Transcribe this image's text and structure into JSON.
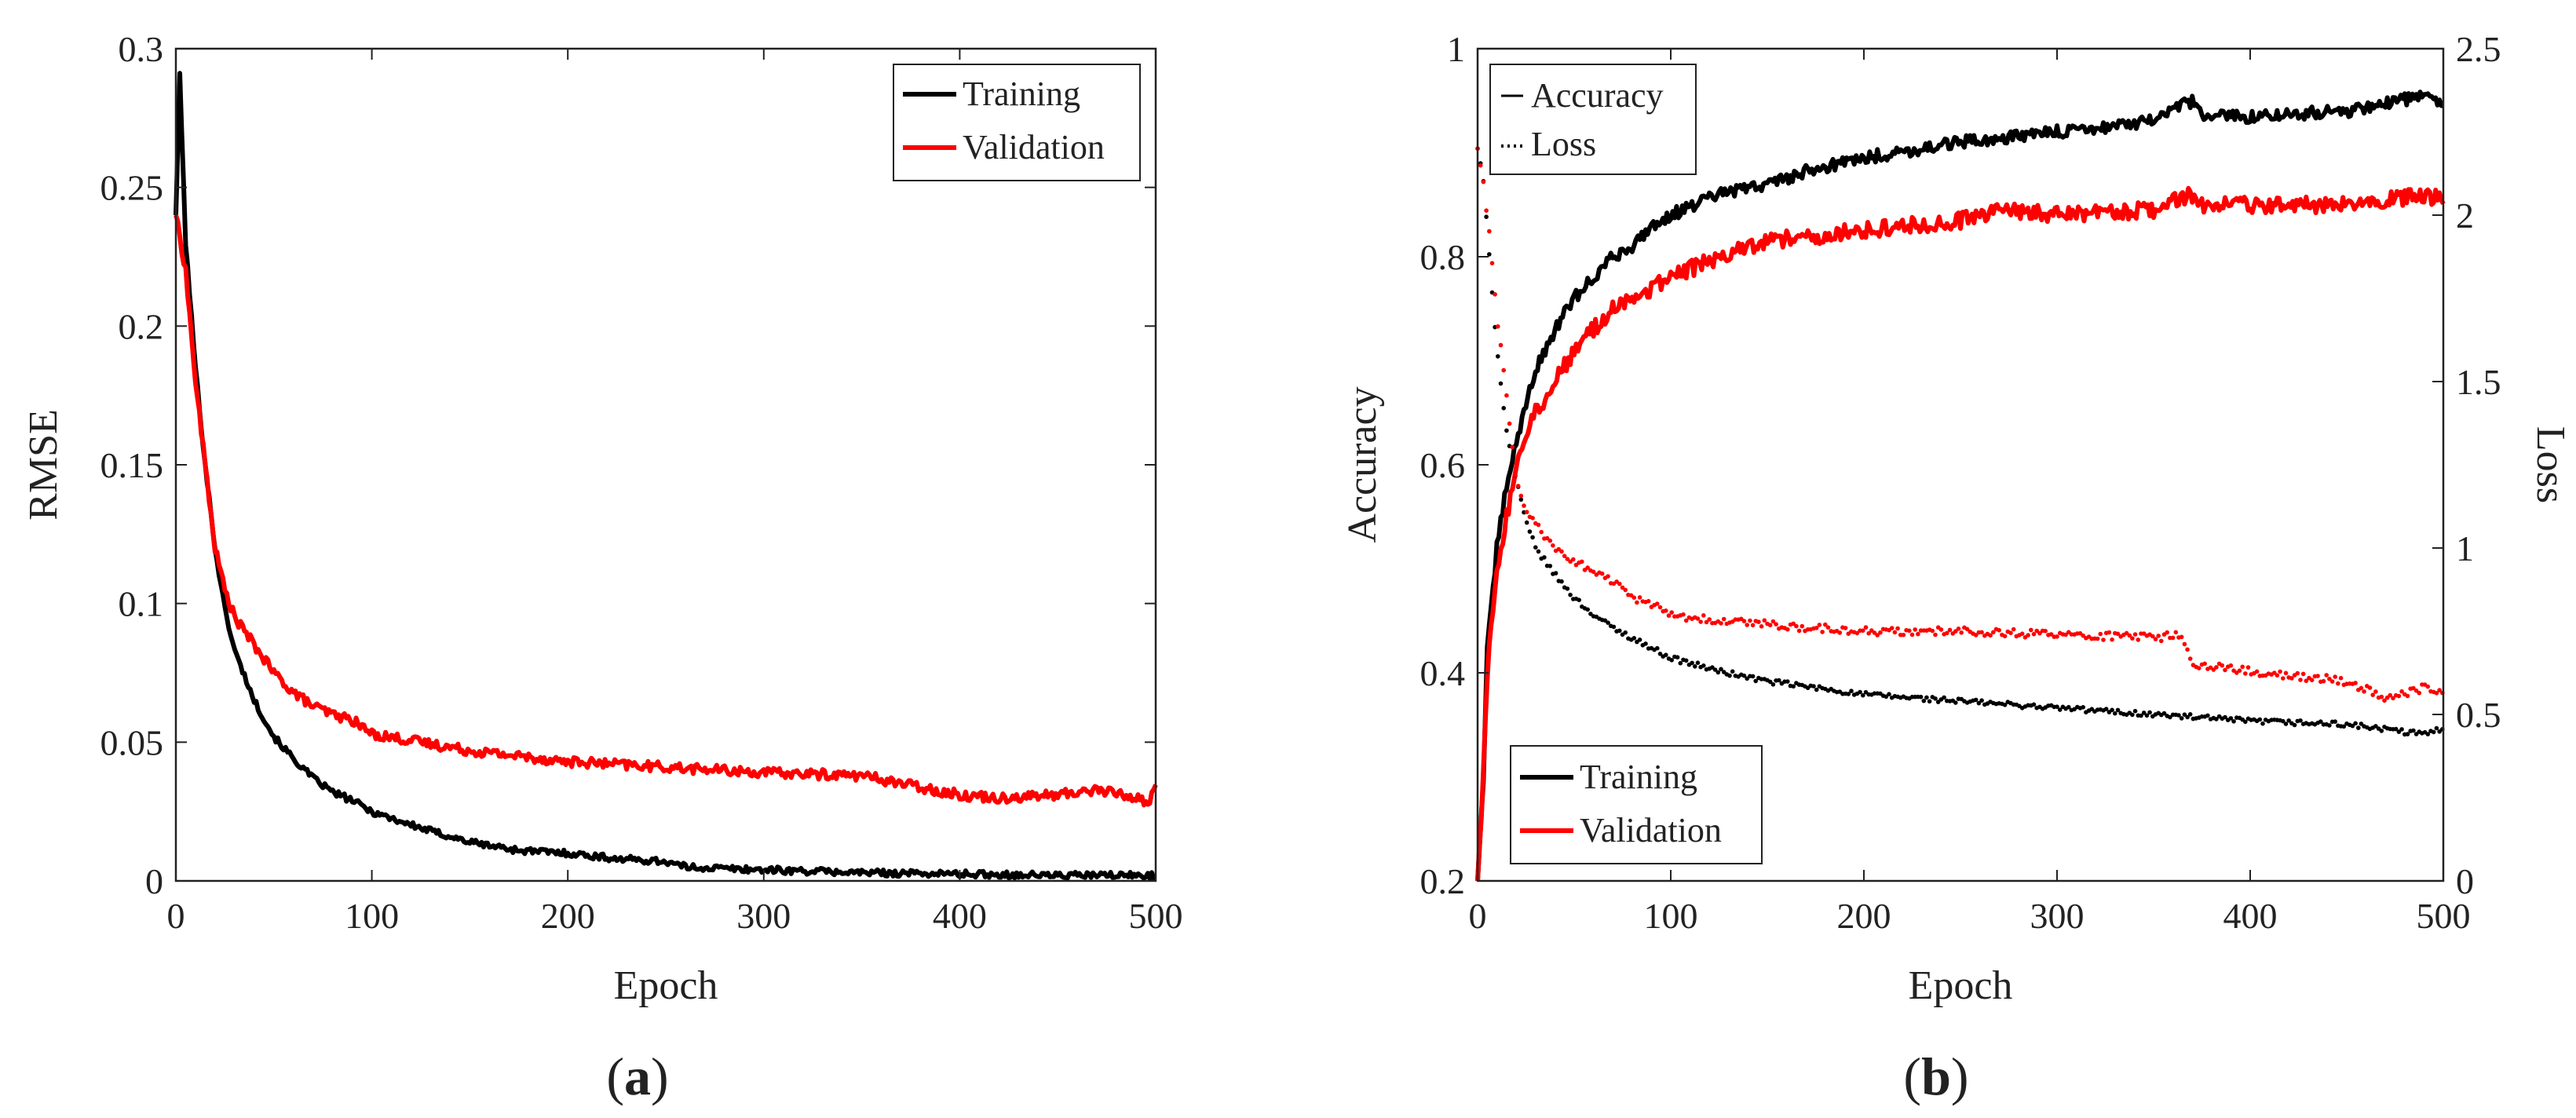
{
  "colors": {
    "training": "#000000",
    "validation": "#ff0000",
    "axis": "#222222"
  },
  "chart_data": [
    {
      "id": "a",
      "panel_label": "a",
      "type": "line",
      "xlabel": "Epoch",
      "ylabel": "RMSE",
      "xlim": [
        0,
        500
      ],
      "ylim": [
        0,
        0.3
      ],
      "xticks": [
        0,
        100,
        200,
        300,
        400,
        500
      ],
      "xtick_labels": [
        "0",
        "100",
        "200",
        "300",
        "400",
        "500"
      ],
      "yticks": [
        0,
        0.05,
        0.1,
        0.15,
        0.2,
        0.25,
        0.3
      ],
      "ytick_labels": [
        "0",
        "0.05",
        "0.1",
        "0.15",
        "0.2",
        "0.25",
        "0.3"
      ],
      "legend_position": "top-right",
      "series": [
        {
          "name": "Training",
          "color": "#000000",
          "style": "solid",
          "x": [
            0,
            2,
            5,
            10,
            15,
            20,
            25,
            30,
            40,
            50,
            60,
            70,
            80,
            90,
            100,
            125,
            150,
            175,
            200,
            225,
            250,
            260,
            280,
            300,
            350,
            400,
            450,
            500
          ],
          "y": [
            0.24,
            0.29,
            0.23,
            0.185,
            0.15,
            0.12,
            0.098,
            0.083,
            0.065,
            0.052,
            0.044,
            0.037,
            0.032,
            0.029,
            0.025,
            0.019,
            0.014,
            0.011,
            0.01,
            0.008,
            0.007,
            0.005,
            0.0045,
            0.004,
            0.003,
            0.0025,
            0.002,
            0.002
          ],
          "noise": 0.0012
        },
        {
          "name": "Validation",
          "color": "#ff0000",
          "style": "solid",
          "x": [
            0,
            5,
            10,
            15,
            20,
            25,
            30,
            40,
            50,
            60,
            70,
            80,
            90,
            100,
            125,
            150,
            175,
            200,
            225,
            250,
            300,
            350,
            400,
            420,
            450,
            470,
            490,
            497,
            500
          ],
          "y": [
            0.24,
            0.22,
            0.18,
            0.15,
            0.12,
            0.105,
            0.095,
            0.085,
            0.075,
            0.068,
            0.063,
            0.06,
            0.058,
            0.053,
            0.05,
            0.047,
            0.045,
            0.043,
            0.042,
            0.041,
            0.039,
            0.038,
            0.031,
            0.03,
            0.031,
            0.033,
            0.03,
            0.028,
            0.036
          ],
          "noise": 0.0018
        }
      ]
    },
    {
      "id": "b",
      "panel_label": "b",
      "type": "line",
      "xlabel": "Epoch",
      "ylabel": "Accuracy",
      "ylabel_right": "Loss",
      "xlim": [
        0,
        500
      ],
      "ylim": [
        0.2,
        1
      ],
      "ylim_right": [
        0,
        2.5
      ],
      "xticks": [
        0,
        100,
        200,
        300,
        400,
        500
      ],
      "xtick_labels": [
        "0",
        "100",
        "200",
        "300",
        "400",
        "500"
      ],
      "yticks": [
        0.2,
        0.4,
        0.6,
        0.8,
        1
      ],
      "ytick_labels": [
        "0.2",
        "0.4",
        "0.6",
        "0.8",
        "1"
      ],
      "yticks_right": [
        0,
        0.5,
        1,
        1.5,
        2,
        2.5
      ],
      "ytick_labels_right": [
        "0",
        "0.5",
        "1",
        "1.5",
        "2",
        "2.5"
      ],
      "style_legend": {
        "position": "top-left",
        "entries": [
          {
            "label": "Accuracy",
            "style": "solid"
          },
          {
            "label": "Loss",
            "style": "dotted"
          }
        ]
      },
      "color_legend": {
        "position": "bottom-left",
        "entries": [
          {
            "label": "Training",
            "color": "#000000"
          },
          {
            "label": "Validation",
            "color": "#ff0000"
          }
        ]
      },
      "series": [
        {
          "name": "Training accuracy",
          "color": "#000000",
          "style": "solid",
          "axis": "left",
          "x": [
            0,
            3,
            5,
            10,
            15,
            20,
            25,
            30,
            40,
            50,
            60,
            70,
            80,
            90,
            100,
            125,
            150,
            175,
            200,
            250,
            275,
            300,
            350,
            370,
            375,
            400,
            450,
            490,
            500
          ],
          "y": [
            0.2,
            0.3,
            0.42,
            0.52,
            0.58,
            0.62,
            0.66,
            0.69,
            0.73,
            0.76,
            0.78,
            0.8,
            0.81,
            0.83,
            0.84,
            0.86,
            0.87,
            0.885,
            0.895,
            0.91,
            0.915,
            0.92,
            0.93,
            0.95,
            0.935,
            0.935,
            0.94,
            0.955,
            0.945
          ],
          "noise": 0.006
        },
        {
          "name": "Validation accuracy",
          "color": "#ff0000",
          "style": "solid",
          "axis": "left",
          "x": [
            0,
            3,
            5,
            10,
            15,
            20,
            25,
            30,
            40,
            50,
            60,
            70,
            80,
            90,
            100,
            125,
            150,
            175,
            200,
            250,
            275,
            300,
            350,
            370,
            375,
            400,
            450,
            490,
            500
          ],
          "y": [
            0.2,
            0.3,
            0.4,
            0.5,
            0.55,
            0.6,
            0.63,
            0.65,
            0.68,
            0.71,
            0.73,
            0.75,
            0.76,
            0.77,
            0.78,
            0.8,
            0.815,
            0.82,
            0.825,
            0.835,
            0.845,
            0.84,
            0.845,
            0.86,
            0.85,
            0.85,
            0.85,
            0.86,
            0.855
          ],
          "noise": 0.008
        },
        {
          "name": "Training loss",
          "color": "#000000",
          "style": "dotted",
          "axis": "right",
          "x": [
            0,
            3,
            5,
            10,
            15,
            20,
            25,
            30,
            40,
            50,
            60,
            70,
            80,
            90,
            100,
            125,
            150,
            175,
            200,
            250,
            300,
            350,
            400,
            450,
            490,
            500
          ],
          "y": [
            2.2,
            2.1,
            1.95,
            1.6,
            1.35,
            1.2,
            1.08,
            1.0,
            0.92,
            0.85,
            0.8,
            0.76,
            0.73,
            0.7,
            0.67,
            0.63,
            0.6,
            0.58,
            0.56,
            0.54,
            0.52,
            0.5,
            0.48,
            0.47,
            0.44,
            0.46
          ],
          "noise": 0.008
        },
        {
          "name": "Validation loss",
          "color": "#ff0000",
          "style": "dotted",
          "axis": "right",
          "x": [
            0,
            3,
            5,
            10,
            15,
            20,
            25,
            30,
            40,
            50,
            60,
            70,
            80,
            90,
            100,
            125,
            150,
            200,
            250,
            300,
            350,
            365,
            370,
            400,
            450,
            470,
            490,
            500
          ],
          "y": [
            2.2,
            2.1,
            2.0,
            1.7,
            1.45,
            1.2,
            1.12,
            1.07,
            1.0,
            0.96,
            0.93,
            0.9,
            0.85,
            0.83,
            0.8,
            0.78,
            0.77,
            0.75,
            0.75,
            0.74,
            0.73,
            0.74,
            0.65,
            0.63,
            0.6,
            0.55,
            0.58,
            0.56
          ],
          "noise": 0.012
        }
      ]
    }
  ]
}
